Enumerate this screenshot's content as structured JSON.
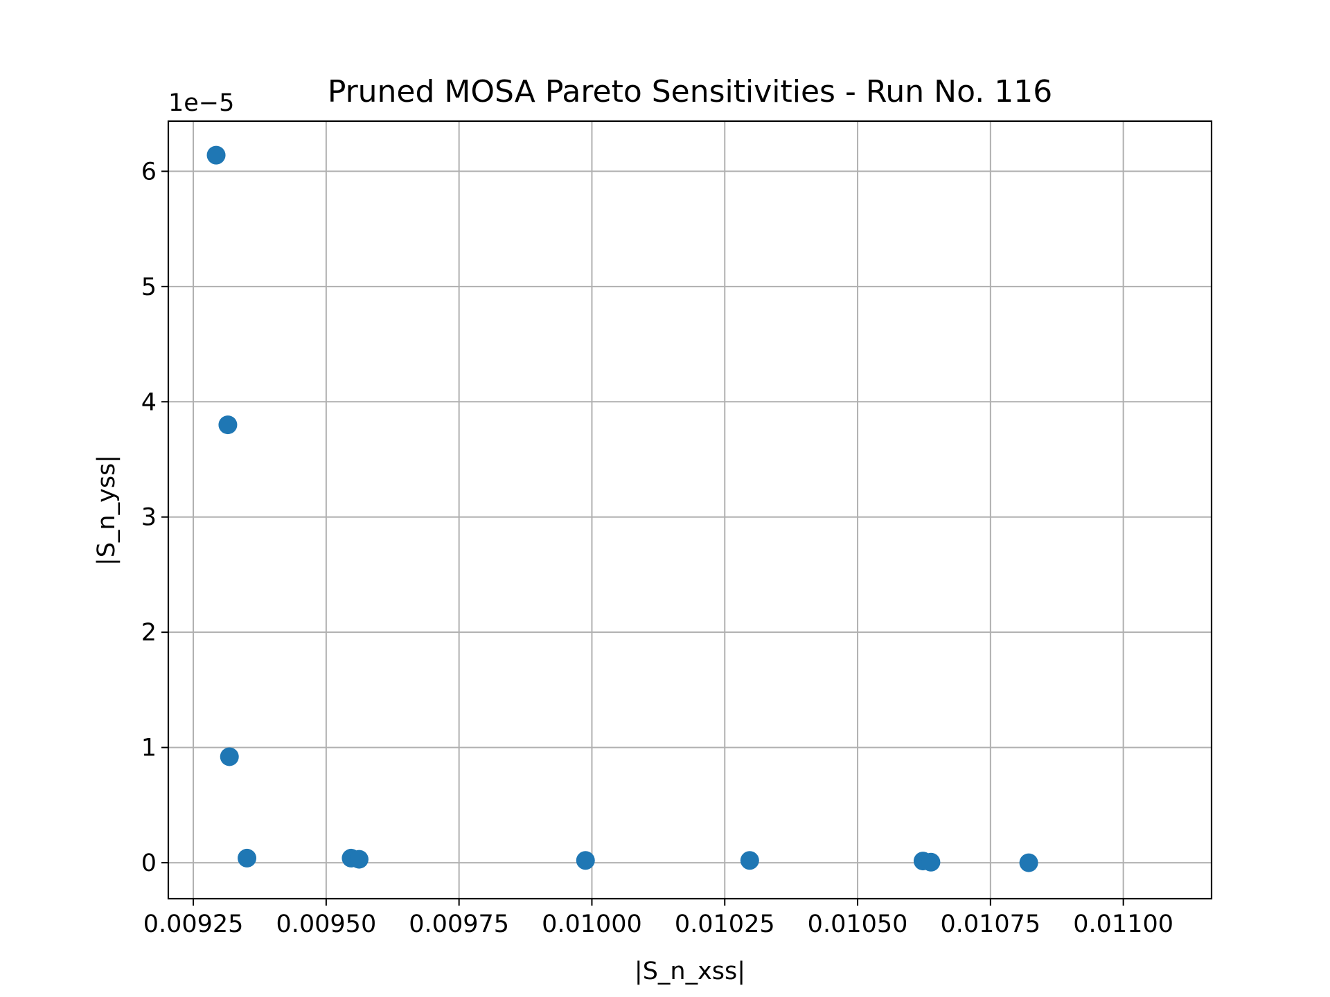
{
  "chart_data": {
    "type": "scatter",
    "title": "Pruned MOSA Pareto Sensitivities - Run No. 116",
    "xlabel": "|S_n_xss|",
    "ylabel": "|S_n_yss|",
    "y_offset_label": "1e−5",
    "xlim": [
      0.009203,
      0.011166
    ],
    "ylim": [
      -0.312,
      6.435
    ],
    "y_scale_multiplier": 1e-05,
    "grid": true,
    "marker_color": "#1f77b4",
    "x_ticks": [
      0.00925,
      0.0095,
      0.00975,
      0.01,
      0.01025,
      0.0105,
      0.01075,
      0.011
    ],
    "x_tick_labels": [
      "0.00925",
      "0.00950",
      "0.00975",
      "0.01000",
      "0.01025",
      "0.01050",
      "0.01075",
      "0.01100"
    ],
    "y_ticks": [
      0,
      1,
      2,
      3,
      4,
      5,
      6
    ],
    "y_tick_labels": [
      "0",
      "1",
      "2",
      "3",
      "4",
      "5",
      "6"
    ],
    "series": [
      {
        "points": [
          {
            "x": 0.009293,
            "y": 6.14
          },
          {
            "x": 0.009315,
            "y": 3.8
          },
          {
            "x": 0.009318,
            "y": 0.92
          },
          {
            "x": 0.009351,
            "y": 0.04
          },
          {
            "x": 0.009547,
            "y": 0.04
          },
          {
            "x": 0.009562,
            "y": 0.03
          },
          {
            "x": 0.009988,
            "y": 0.02
          },
          {
            "x": 0.010297,
            "y": 0.02
          },
          {
            "x": 0.010623,
            "y": 0.015
          },
          {
            "x": 0.010638,
            "y": 0.005
          },
          {
            "x": 0.010822,
            "y": 0.0
          }
        ]
      }
    ]
  }
}
